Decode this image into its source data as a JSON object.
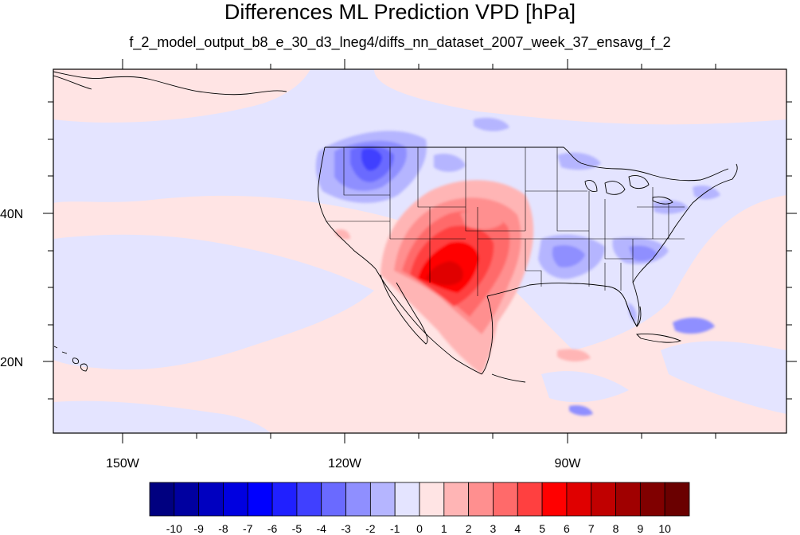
{
  "title": "Differences ML Prediction VPD [hPa]",
  "subtitle": "f_2_model_output_b8_e_30_d3_lneg4/diffs_nn_dataset_2007_week_37_ensavg_f_2",
  "axes": {
    "lon_labels": [
      "150W",
      "120W",
      "90W"
    ],
    "lat_labels": [
      "40N",
      "20N"
    ]
  },
  "colorbar": {
    "labels": [
      "-10",
      "-9",
      "-8",
      "-7",
      "-6",
      "-5",
      "-4",
      "-3",
      "-2",
      "-1",
      "0",
      "1",
      "2",
      "3",
      "4",
      "5",
      "6",
      "7",
      "8",
      "9",
      "10"
    ],
    "colors": [
      "#000080",
      "#0000a0",
      "#0000c0",
      "#0000e0",
      "#0000ff",
      "#2020ff",
      "#4040ff",
      "#6a6aff",
      "#8f8fff",
      "#b5b5ff",
      "#e4e4ff",
      "#ffe4e4",
      "#ffb5b5",
      "#ff8f8f",
      "#ff6a6a",
      "#ff4040",
      "#ff0000",
      "#e00000",
      "#c00000",
      "#a00000",
      "#800000",
      "#6a0000"
    ]
  },
  "map": {
    "region_lon": [
      -159,
      -61
    ],
    "region_lat": [
      11,
      60
    ],
    "features": [
      "coastlines",
      "us-state-borders",
      "country-borders"
    ],
    "palette": {
      "background_positive": "#ffe4e4",
      "background_negative": "#e4e4ff",
      "border_color": "#000000"
    }
  }
}
